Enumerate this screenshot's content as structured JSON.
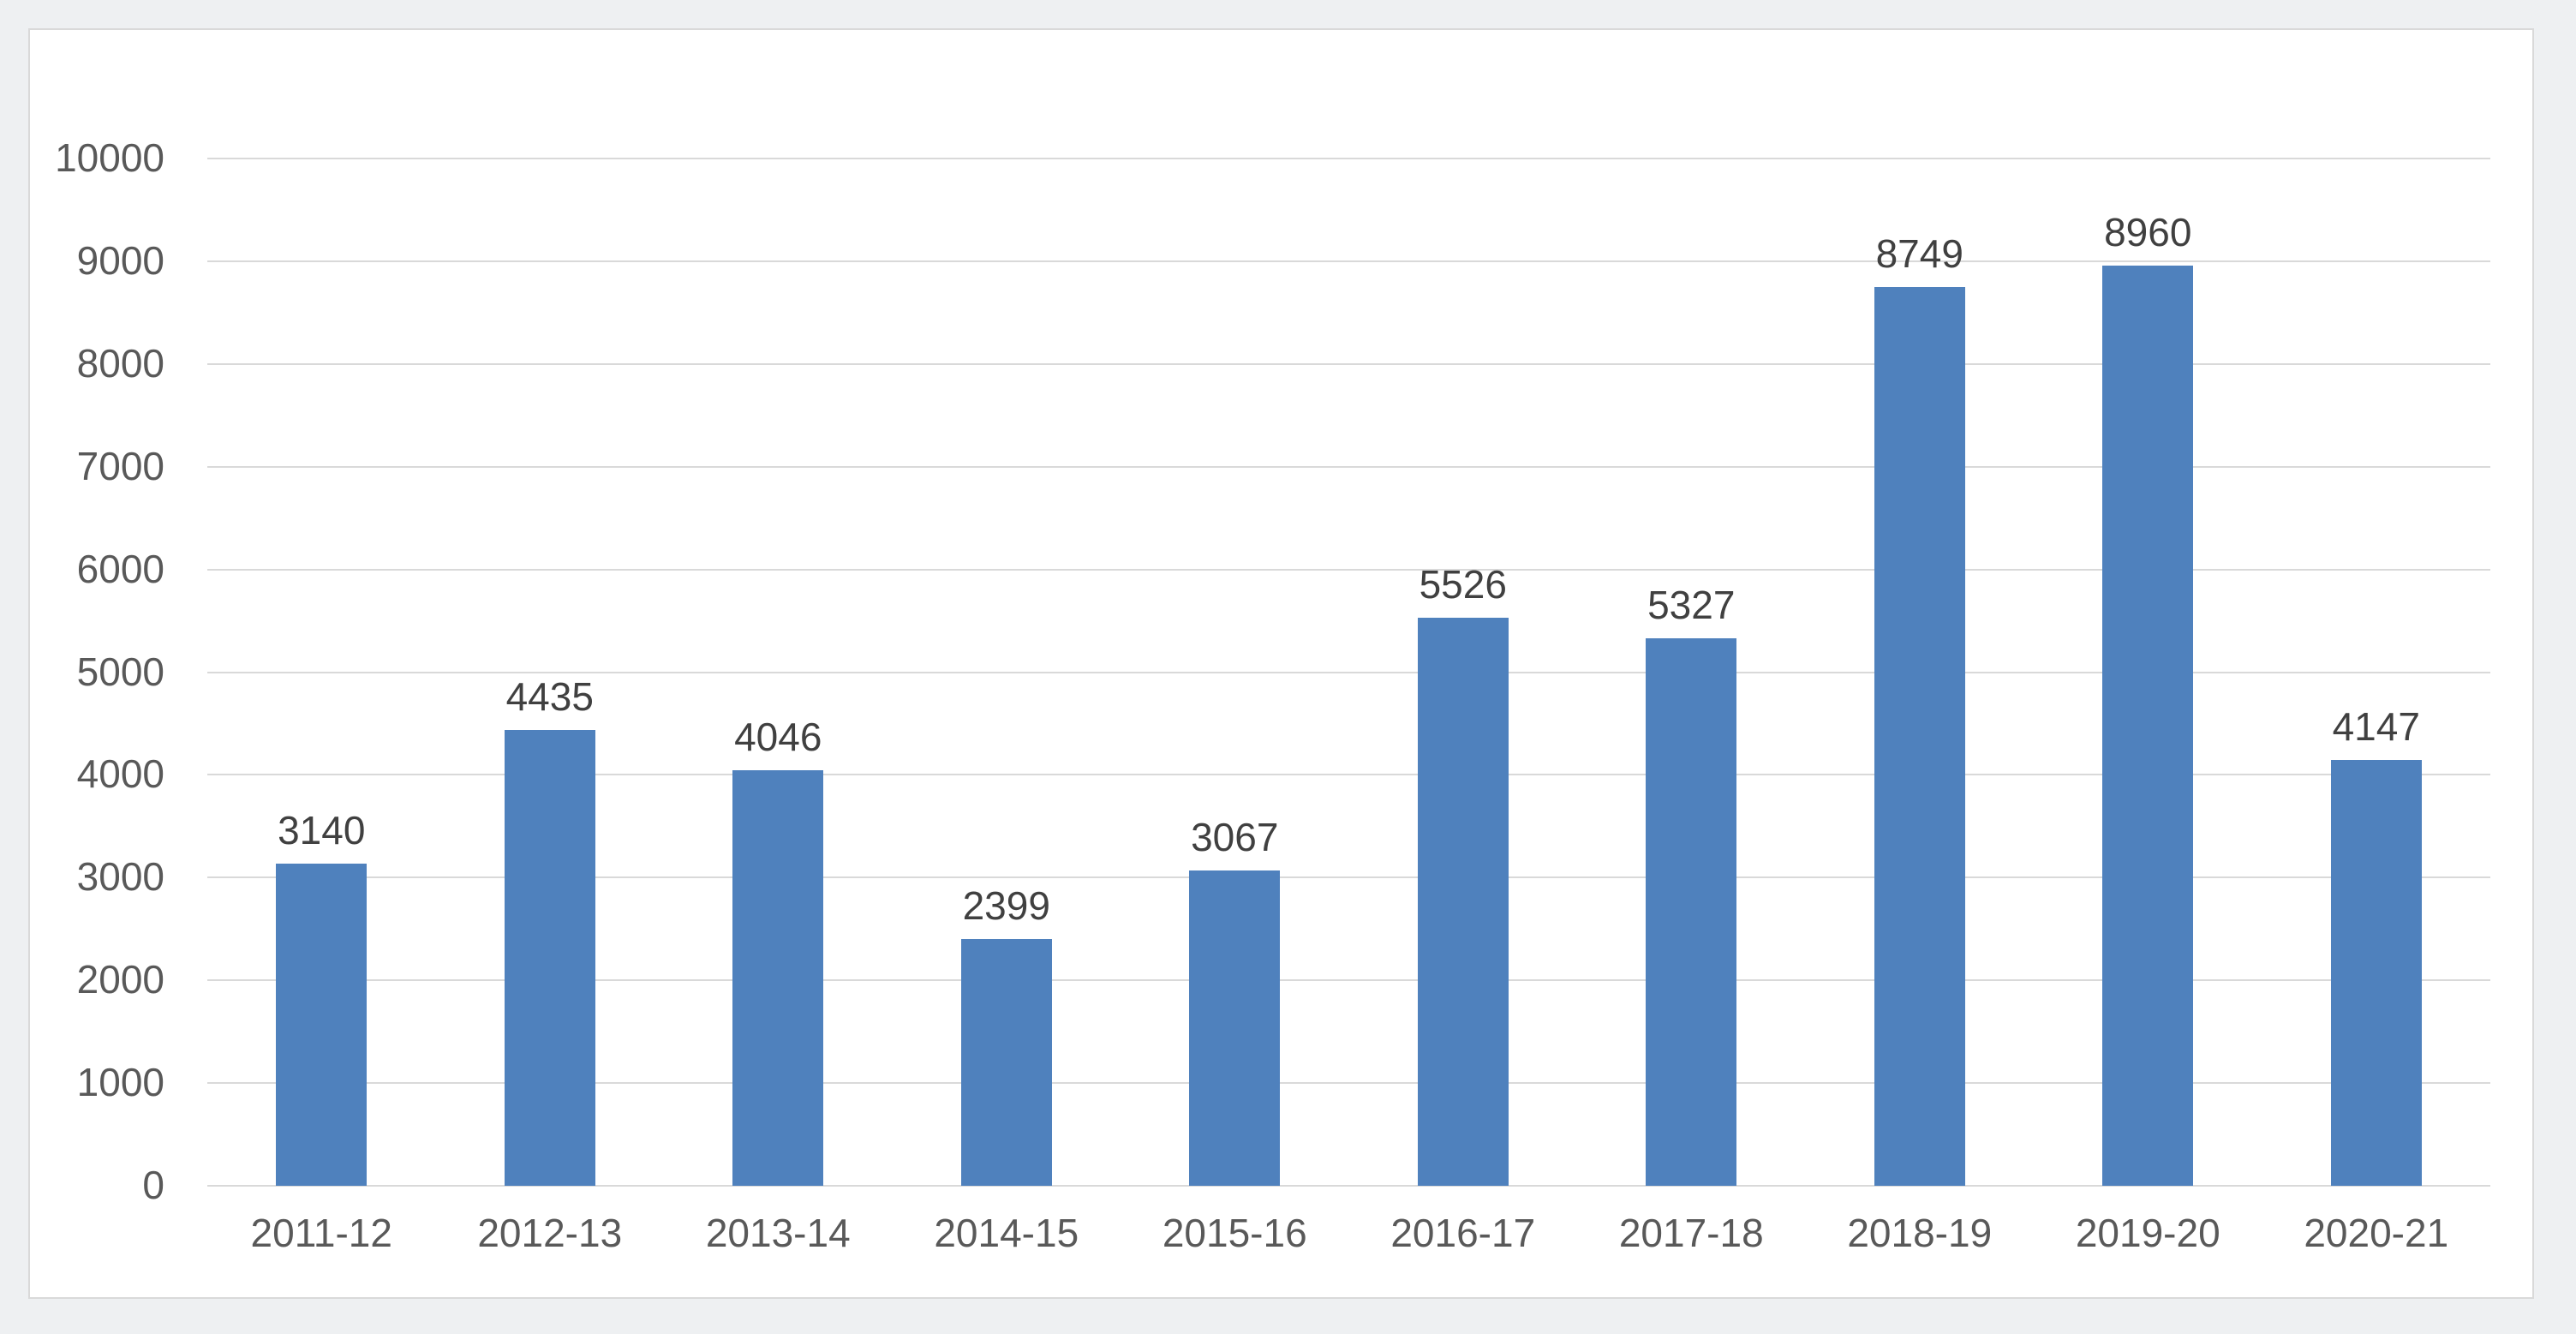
{
  "chart_data": {
    "type": "bar",
    "title": "",
    "xlabel": "",
    "ylabel": "",
    "categories": [
      "2011-12",
      "2012-13",
      "2013-14",
      "2014-15",
      "2015-16",
      "2016-17",
      "2017-18",
      "2018-19",
      "2019-20",
      "2020-21"
    ],
    "values": [
      3140,
      4435,
      4046,
      2399,
      3067,
      5526,
      5327,
      8749,
      8960,
      4147
    ],
    "yticks": [
      0,
      1000,
      2000,
      3000,
      4000,
      5000,
      6000,
      7000,
      8000,
      9000,
      10000
    ],
    "ylim": [
      0,
      10000
    ],
    "ytick_interval": 1000,
    "grid": true,
    "legend": false,
    "data_labels": true,
    "bar_width_fraction": 0.4
  },
  "colors": {
    "bar": "#4f81bd",
    "gridline": "#d9d9d9",
    "axis_label": "#595959",
    "data_label": "#404040",
    "panel_bg": "#ffffff",
    "panel_border": "#d9d9d9",
    "page_bg": "#eef0f2"
  }
}
